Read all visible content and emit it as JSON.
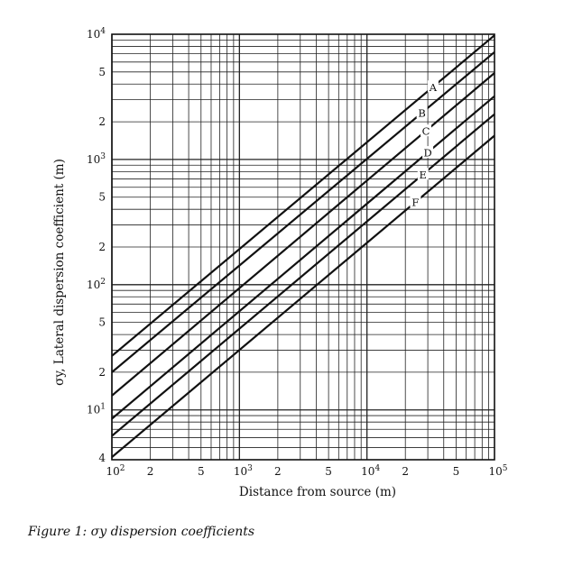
{
  "chart_data": {
    "type": "line",
    "title": "",
    "xlabel": "Distance from source (m)",
    "ylabel": "σy, Lateral dispersion coefficient (m)",
    "x_scale": "log",
    "y_scale": "log",
    "xlim": [
      100,
      100000
    ],
    "ylim": [
      4,
      10000
    ],
    "grid": true,
    "x_ticks": [
      {
        "value": 100,
        "base": "10",
        "exp": "2"
      },
      {
        "value": 200,
        "base": "2",
        "exp": ""
      },
      {
        "value": 500,
        "base": "5",
        "exp": ""
      },
      {
        "value": 1000,
        "base": "10",
        "exp": "3"
      },
      {
        "value": 2000,
        "base": "2",
        "exp": ""
      },
      {
        "value": 5000,
        "base": "5",
        "exp": ""
      },
      {
        "value": 10000,
        "base": "10",
        "exp": "4"
      },
      {
        "value": 20000,
        "base": "2",
        "exp": ""
      },
      {
        "value": 50000,
        "base": "5",
        "exp": ""
      },
      {
        "value": 100000,
        "base": "10",
        "exp": "5"
      }
    ],
    "y_ticks": [
      {
        "value": 4,
        "base": "4",
        "exp": ""
      },
      {
        "value": 10,
        "base": "10",
        "exp": "1"
      },
      {
        "value": 20,
        "base": "2",
        "exp": ""
      },
      {
        "value": 50,
        "base": "5",
        "exp": ""
      },
      {
        "value": 100,
        "base": "10",
        "exp": "2"
      },
      {
        "value": 200,
        "base": "2",
        "exp": ""
      },
      {
        "value": 500,
        "base": "5",
        "exp": ""
      },
      {
        "value": 1000,
        "base": "10",
        "exp": "3"
      },
      {
        "value": 2000,
        "base": "2",
        "exp": ""
      },
      {
        "value": 5000,
        "base": "5",
        "exp": ""
      },
      {
        "value": 10000,
        "base": "10",
        "exp": "4"
      }
    ],
    "series": [
      {
        "name": "A",
        "x": [
          100,
          100000
        ],
        "y": [
          27,
          9800
        ]
      },
      {
        "name": "B",
        "x": [
          100,
          100000
        ],
        "y": [
          20,
          7200
        ]
      },
      {
        "name": "C",
        "x": [
          100,
          100000
        ],
        "y": [
          13,
          4900
        ]
      },
      {
        "name": "D",
        "x": [
          100,
          100000
        ],
        "y": [
          8.5,
          3200
        ]
      },
      {
        "name": "E",
        "x": [
          100,
          100000
        ],
        "y": [
          6.2,
          2300
        ]
      },
      {
        "name": "F",
        "x": [
          100,
          100000
        ],
        "y": [
          4.2,
          1550
        ]
      }
    ],
    "series_label_positions_x": [
      33000,
      27000,
      29000,
      30000,
      27500,
      24000
    ]
  },
  "caption": "Figure 1: σy dispersion coefficients"
}
